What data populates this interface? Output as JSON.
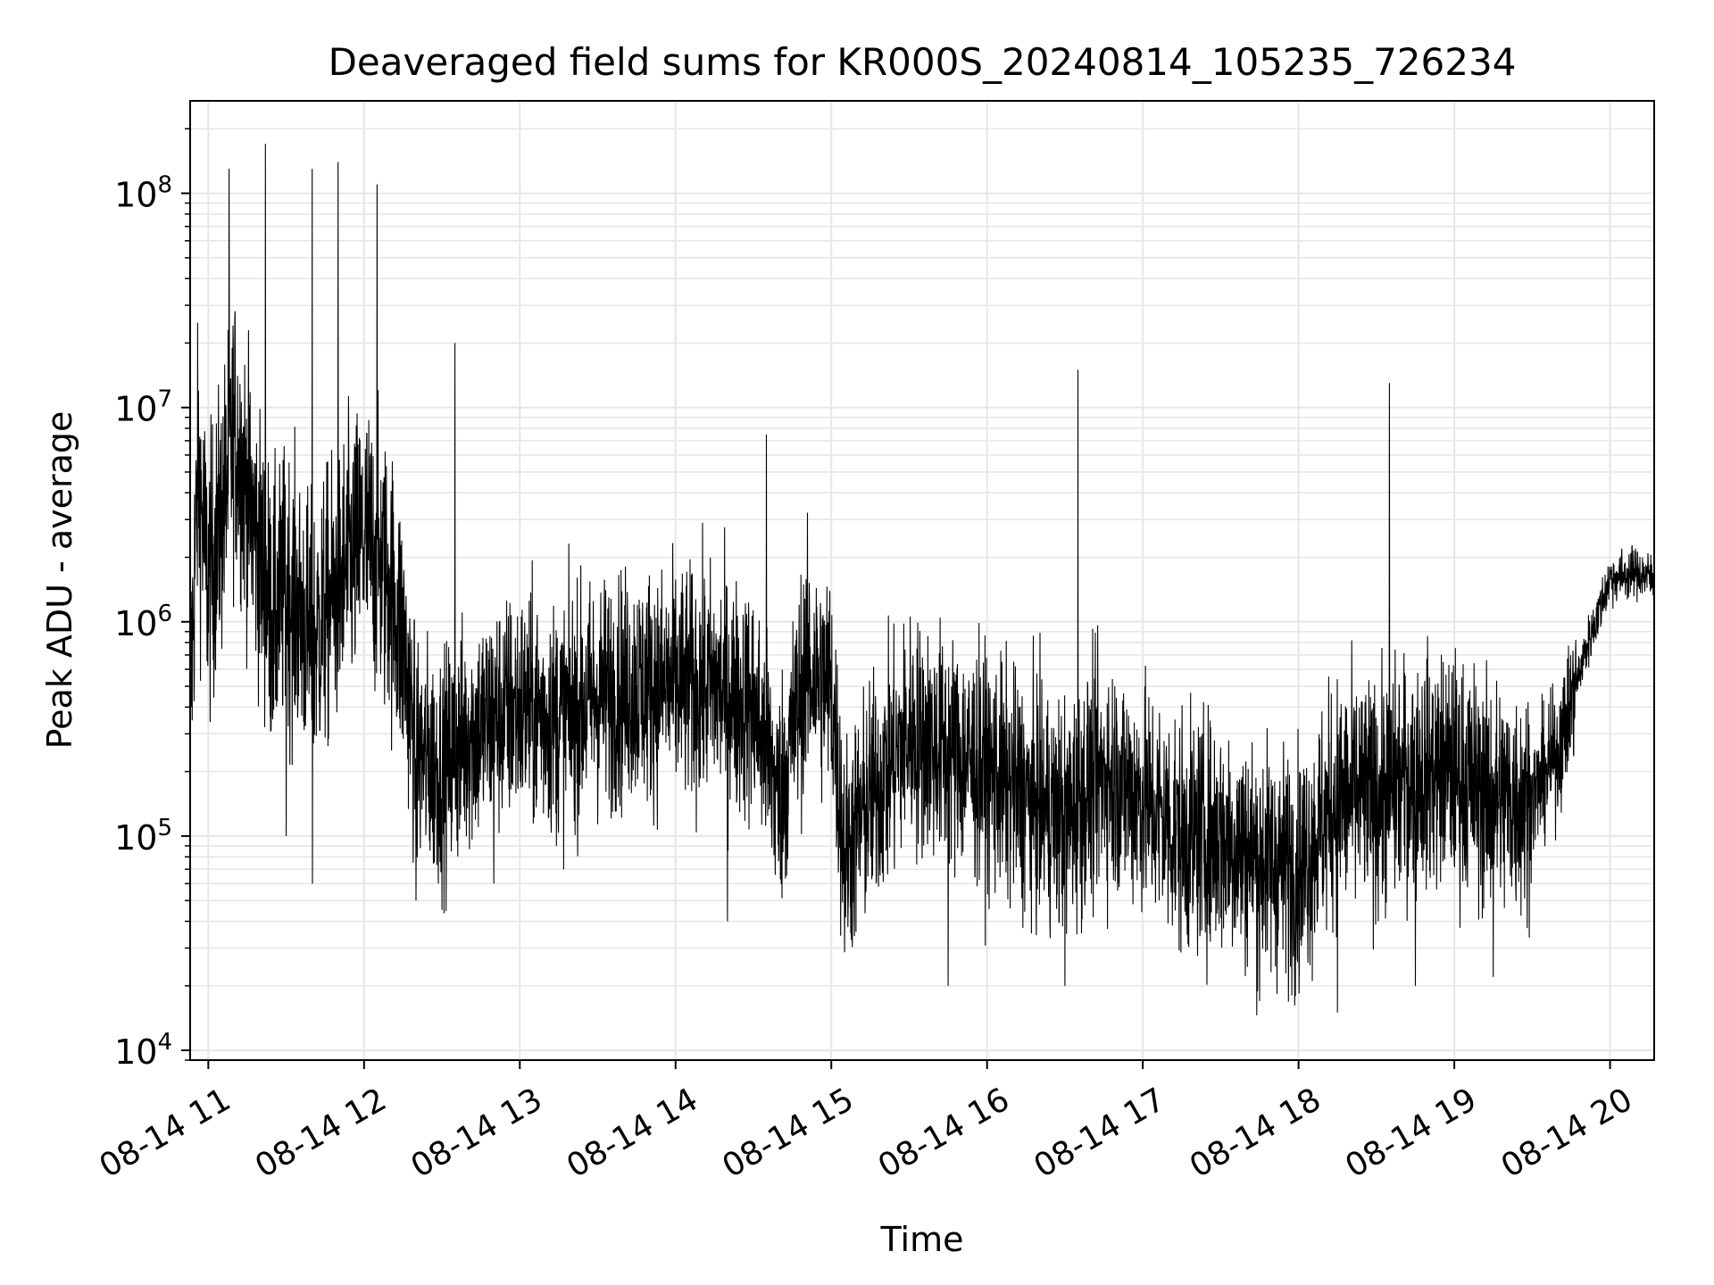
{
  "chart_data": {
    "type": "line",
    "title": "Deaveraged field sums for KR000S_20240814_105235_726234",
    "xlabel": "Time",
    "ylabel": "Peak ADU - average",
    "xscale": "time",
    "yscale": "log",
    "xlim": [
      "2024-08-14 10:53",
      "2024-08-14 20:17"
    ],
    "ylim": [
      9000,
      270000000
    ],
    "grid": true,
    "line_color": "#000000",
    "x_ticks": [
      "08-14 11",
      "08-14 12",
      "08-14 13",
      "08-14 14",
      "08-14 15",
      "08-14 16",
      "08-14 17",
      "08-14 18",
      "08-14 19",
      "08-14 20"
    ],
    "y_ticks": [
      {
        "base": "10",
        "exp": "4",
        "value": 10000
      },
      {
        "base": "10",
        "exp": "5",
        "value": 100000
      },
      {
        "base": "10",
        "exp": "6",
        "value": 1000000
      },
      {
        "base": "10",
        "exp": "7",
        "value": 10000000
      },
      {
        "base": "10",
        "exp": "8",
        "value": 100000000
      }
    ],
    "series": [
      {
        "points": [
          [
            "2024-08-14 10:53",
            400000
          ],
          [
            "2024-08-14 10:56",
            5000000
          ],
          [
            "2024-08-14 11:00",
            1500000
          ],
          [
            "2024-08-14 11:05",
            3000000
          ],
          [
            "2024-08-14 11:10",
            8000000
          ],
          [
            "2024-08-14 11:15",
            4000000
          ],
          [
            "2024-08-14 11:20",
            2000000
          ],
          [
            "2024-08-14 11:25",
            1000000
          ],
          [
            "2024-08-14 11:30",
            1500000
          ],
          [
            "2024-08-14 11:40",
            800000
          ],
          [
            "2024-08-14 11:50",
            1500000
          ],
          [
            "2024-08-14 12:00",
            2500000
          ],
          [
            "2024-08-14 12:10",
            1500000
          ],
          [
            "2024-08-14 12:15",
            800000
          ],
          [
            "2024-08-14 12:20",
            250000
          ],
          [
            "2024-08-14 12:30",
            200000
          ],
          [
            "2024-08-14 12:40",
            300000
          ],
          [
            "2024-08-14 12:50",
            350000
          ],
          [
            "2024-08-14 13:00",
            400000
          ],
          [
            "2024-08-14 13:15",
            350000
          ],
          [
            "2024-08-14 13:30",
            450000
          ],
          [
            "2024-08-14 13:45",
            500000
          ],
          [
            "2024-08-14 14:00",
            500000
          ],
          [
            "2024-08-14 14:15",
            500000
          ],
          [
            "2024-08-14 14:30",
            400000
          ],
          [
            "2024-08-14 14:40",
            150000
          ],
          [
            "2024-08-14 14:50",
            600000
          ],
          [
            "2024-08-14 15:00",
            500000
          ],
          [
            "2024-08-14 15:05",
            80000
          ],
          [
            "2024-08-14 15:15",
            150000
          ],
          [
            "2024-08-14 15:30",
            300000
          ],
          [
            "2024-08-14 15:45",
            250000
          ],
          [
            "2024-08-14 16:00",
            200000
          ],
          [
            "2024-08-14 16:15",
            150000
          ],
          [
            "2024-08-14 16:30",
            120000
          ],
          [
            "2024-08-14 16:45",
            200000
          ],
          [
            "2024-08-14 17:00",
            150000
          ],
          [
            "2024-08-14 17:15",
            100000
          ],
          [
            "2024-08-14 17:30",
            100000
          ],
          [
            "2024-08-14 17:45",
            80000
          ],
          [
            "2024-08-14 18:00",
            70000
          ],
          [
            "2024-08-14 18:15",
            150000
          ],
          [
            "2024-08-14 18:30",
            150000
          ],
          [
            "2024-08-14 18:45",
            200000
          ],
          [
            "2024-08-14 19:00",
            200000
          ],
          [
            "2024-08-14 19:15",
            150000
          ],
          [
            "2024-08-14 19:30",
            150000
          ],
          [
            "2024-08-14 19:40",
            250000
          ],
          [
            "2024-08-14 19:50",
            700000
          ],
          [
            "2024-08-14 20:00",
            1600000
          ],
          [
            "2024-08-14 20:10",
            1700000
          ],
          [
            "2024-08-14 20:17",
            1600000
          ]
        ],
        "spikes": [
          [
            "2024-08-14 11:08",
            130000000
          ],
          [
            "2024-08-14 11:22",
            170000000
          ],
          [
            "2024-08-14 11:40",
            130000000
          ],
          [
            "2024-08-14 11:50",
            140000000
          ],
          [
            "2024-08-14 12:05",
            110000000
          ],
          [
            "2024-08-14 12:35",
            20000000
          ],
          [
            "2024-08-14 14:35",
            7500000
          ],
          [
            "2024-08-14 16:35",
            15000000
          ],
          [
            "2024-08-14 18:35",
            13000000
          ]
        ],
        "dips": [
          [
            "2024-08-14 11:30",
            100000
          ],
          [
            "2024-08-14 11:40",
            60000
          ],
          [
            "2024-08-14 12:20",
            50000
          ],
          [
            "2024-08-14 12:50",
            60000
          ],
          [
            "2024-08-14 14:20",
            40000
          ],
          [
            "2024-08-14 15:45",
            20000
          ],
          [
            "2024-08-14 16:30",
            20000
          ],
          [
            "2024-08-14 17:45",
            17000
          ],
          [
            "2024-08-14 18:15",
            15000
          ],
          [
            "2024-08-14 18:45",
            20000
          ],
          [
            "2024-08-14 19:15",
            22000
          ]
        ]
      }
    ]
  }
}
